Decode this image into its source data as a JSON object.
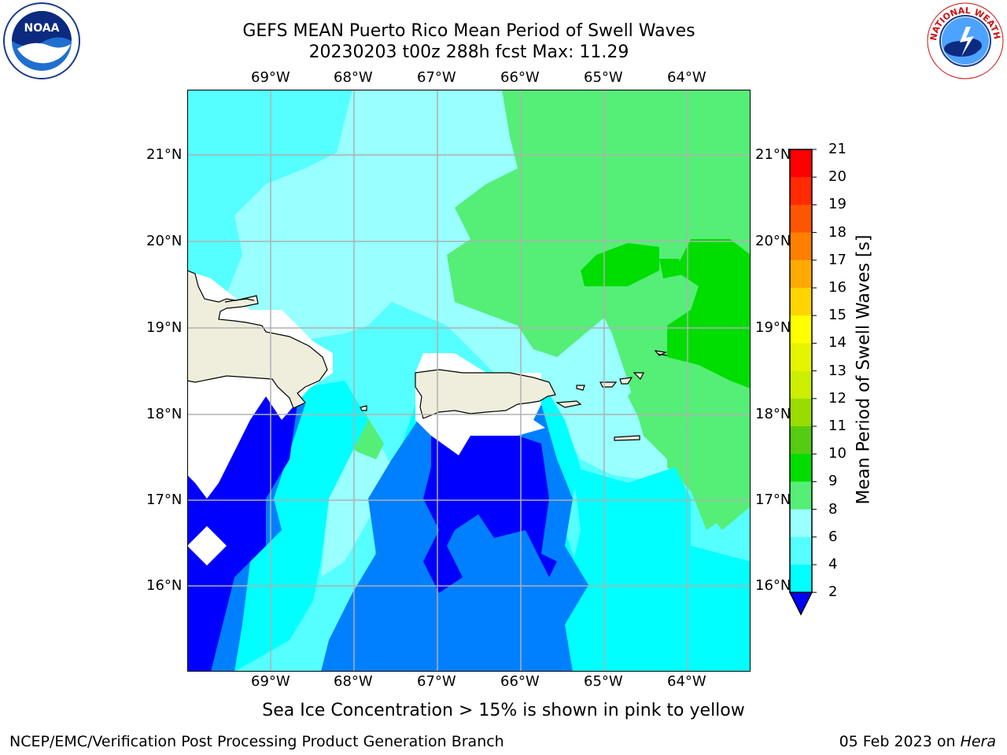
{
  "header": {
    "title_line1": "GEFS MEAN Puerto Rico Mean Period of Swell Waves",
    "title_line2": "20230203 t00z 288h fcst   Max: 11.29"
  },
  "logos": {
    "left": {
      "text": "NOAA",
      "icon": "noaa-logo-icon"
    },
    "right": {
      "icon": "nws-logo-icon",
      "text": "NATIONAL WEATHER SERVICE"
    }
  },
  "axes": {
    "lon_labels": [
      "69°W",
      "68°W",
      "67°W",
      "66°W",
      "65°W",
      "64°W"
    ],
    "lat_labels": [
      "21°N",
      "20°N",
      "19°N",
      "18°N",
      "17°N",
      "16°N"
    ]
  },
  "colorbar": {
    "title": "Mean Period of Swell Waves [s]",
    "ticks": [
      "21",
      "20",
      "19",
      "18",
      "17",
      "16",
      "15",
      "14",
      "13",
      "12",
      "11",
      "10",
      "9",
      "8",
      "6",
      "4",
      "2"
    ],
    "colors": [
      "#ff0000",
      "#ff2a00",
      "#ff5500",
      "#ff8000",
      "#ffaa00",
      "#ffd400",
      "#ffff00",
      "#e5f500",
      "#ccee00",
      "#99dd00",
      "#55cc11",
      "#00dd00",
      "#55ee77",
      "#99ffff",
      "#55ffff",
      "#00ffff",
      "#0080ff",
      "#0000ff"
    ]
  },
  "map": {
    "land_color": "#efeedc",
    "colors": {
      "c2": "#0000ff",
      "c4": "#0080ff",
      "c6": "#00ffff",
      "c8": "#55ffff",
      "c9": "#99ffff",
      "c10": "#55ee77",
      "c11": "#00dd00"
    }
  },
  "caption": "Sea Ice Concentration > 15% is shown in pink to yellow",
  "footer": {
    "left": "NCEP/EMC/Verification Post Processing Product Generation Branch",
    "right_date": "05 Feb 2023 on ",
    "right_host": "Hera"
  }
}
